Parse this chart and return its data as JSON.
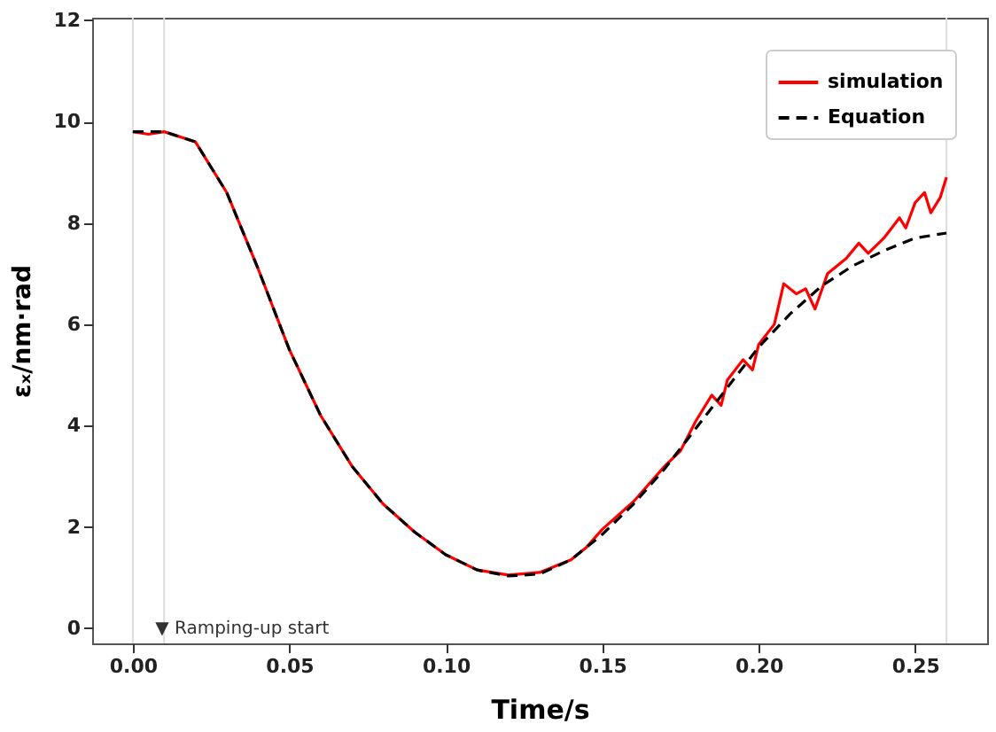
{
  "chart_data": {
    "type": "line",
    "xlabel": "Time/s",
    "ylabel": "εₓ/nm·rad",
    "xlim": [
      -0.013,
      0.273
    ],
    "xticks": [
      {
        "value": 0,
        "label": "0.00"
      },
      {
        "value": 0.05,
        "label": "0.05"
      },
      {
        "value": 0.1,
        "label": "0.10"
      },
      {
        "value": 0.15,
        "label": "0.15"
      },
      {
        "value": 0.2,
        "label": "0.20"
      },
      {
        "value": 0.25,
        "label": "0.25"
      }
    ],
    "ylim": [
      -0.3,
      12.05
    ],
    "yticks": [
      0,
      2,
      4,
      6,
      8,
      10,
      12
    ],
    "grid": false,
    "legend": "top right",
    "marker": "none",
    "series": [
      {
        "name": "simulation",
        "color": "#ff0000",
        "line_style": "solid",
        "x": [
          0,
          0.005,
          0.01,
          0.02,
          0.03,
          0.04,
          0.05,
          0.06,
          0.07,
          0.08,
          0.09,
          0.1,
          0.11,
          0.12,
          0.13,
          0.14,
          0.145,
          0.15,
          0.16,
          0.17,
          0.175,
          0.18,
          0.185,
          0.188,
          0.19,
          0.195,
          0.198,
          0.2,
          0.205,
          0.208,
          0.212,
          0.215,
          0.218,
          0.222,
          0.228,
          0.232,
          0.235,
          0.24,
          0.245,
          0.247,
          0.25,
          0.253,
          0.255,
          0.258,
          0.26
        ],
        "values": [
          9.8,
          9.75,
          9.8,
          9.6,
          8.6,
          7.1,
          5.5,
          4.2,
          3.2,
          2.45,
          1.9,
          1.45,
          1.15,
          1.05,
          1.1,
          1.35,
          1.6,
          1.95,
          2.5,
          3.2,
          3.5,
          4.1,
          4.6,
          4.4,
          4.9,
          5.3,
          5.1,
          5.6,
          6.0,
          6.8,
          6.6,
          6.7,
          6.3,
          7.0,
          7.3,
          7.6,
          7.4,
          7.7,
          8.1,
          7.9,
          8.4,
          8.6,
          8.2,
          8.5,
          8.9
        ]
      },
      {
        "name": "Equation",
        "color": "#000000",
        "line_style": "dashed",
        "x": [
          0,
          0.01,
          0.02,
          0.03,
          0.04,
          0.05,
          0.06,
          0.07,
          0.08,
          0.09,
          0.1,
          0.11,
          0.12,
          0.13,
          0.14,
          0.15,
          0.16,
          0.17,
          0.18,
          0.19,
          0.2,
          0.21,
          0.22,
          0.23,
          0.24,
          0.25,
          0.26
        ],
        "values": [
          9.8,
          9.8,
          9.6,
          8.6,
          7.1,
          5.5,
          4.2,
          3.2,
          2.45,
          1.9,
          1.45,
          1.15,
          1.03,
          1.07,
          1.35,
          1.85,
          2.45,
          3.15,
          3.95,
          4.75,
          5.55,
          6.2,
          6.75,
          7.15,
          7.45,
          7.7,
          7.8
        ]
      }
    ],
    "ref_lines": [
      {
        "axis": "x",
        "value": 0,
        "color": "#dddddd"
      },
      {
        "axis": "x",
        "value": 0.01,
        "color": "#dddddd"
      },
      {
        "axis": "x",
        "value": 0.26,
        "color": "#dddddd"
      }
    ],
    "annotations": [
      {
        "text": "▼ Ramping-up start",
        "x": 0.01,
        "y": 0
      }
    ]
  }
}
